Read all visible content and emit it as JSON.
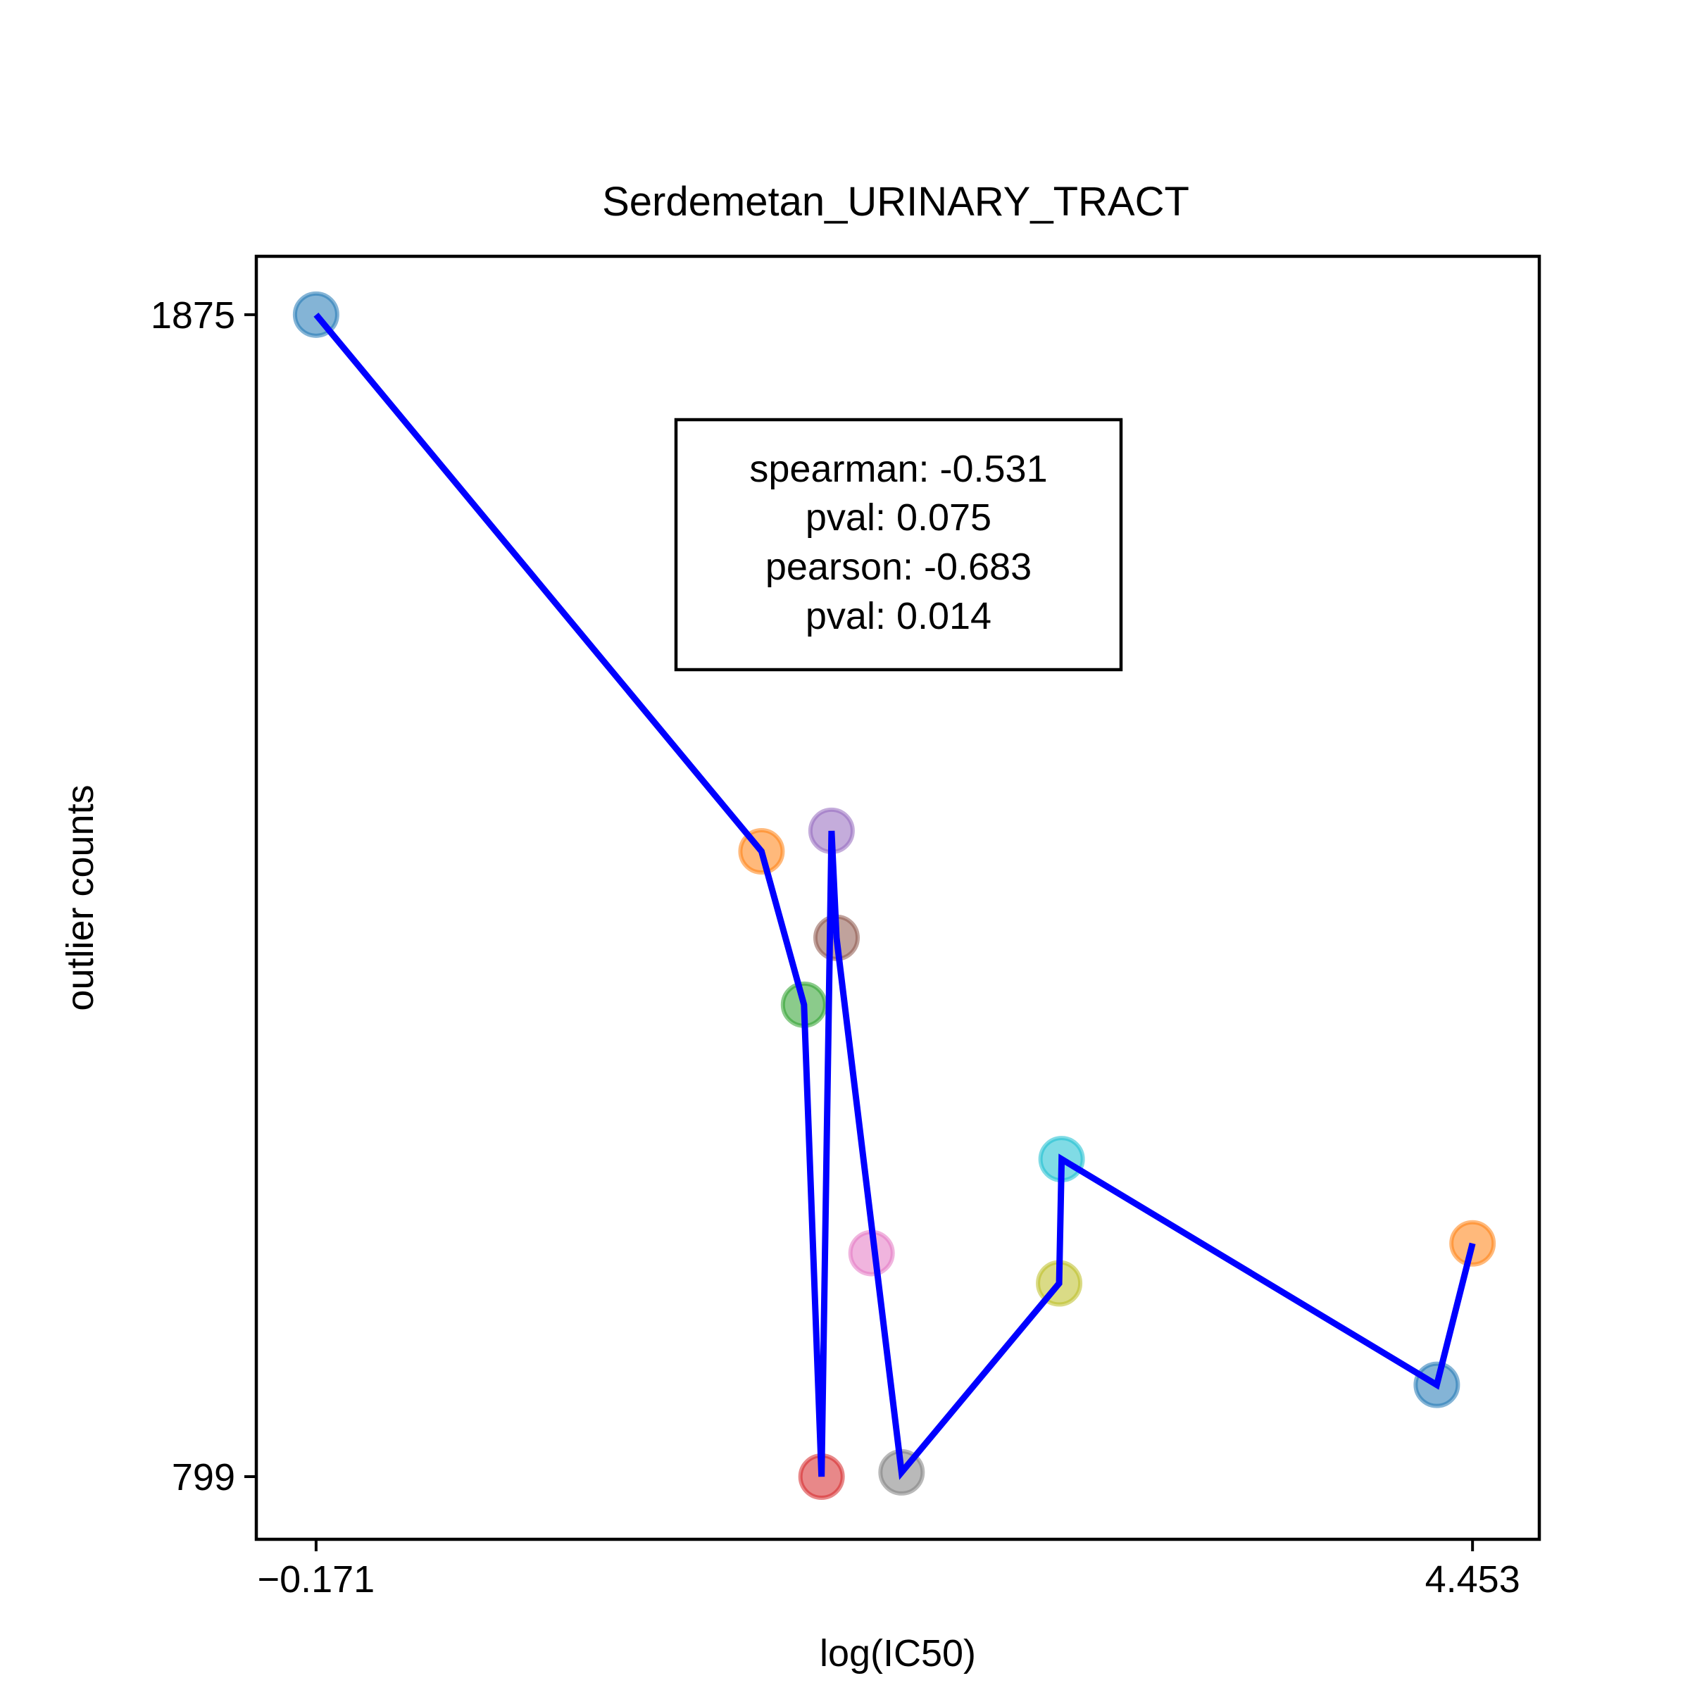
{
  "chart_data": {
    "type": "scatter",
    "title": "Serdemetan_URINARY_TRACT",
    "xlabel": "log(IC50)",
    "ylabel": "outlier counts",
    "xticks": [
      {
        "value": -0.171,
        "label": "−0.171"
      },
      {
        "value": 4.453,
        "label": "4.453"
      }
    ],
    "yticks": [
      {
        "value": 799,
        "label": "799"
      },
      {
        "value": 1875,
        "label": "1875"
      }
    ],
    "xlim": [
      -0.41,
      4.72
    ],
    "ylim": [
      741,
      1929
    ],
    "grid": false,
    "legend": "none",
    "points": [
      {
        "x": -0.171,
        "y": 1875,
        "color": "#1f77b4"
      },
      {
        "x": 1.61,
        "y": 1378,
        "color": "#ff7f0e"
      },
      {
        "x": 1.78,
        "y": 1236,
        "color": "#2ca02c"
      },
      {
        "x": 1.85,
        "y": 799,
        "color": "#d62728"
      },
      {
        "x": 1.89,
        "y": 1397,
        "color": "#9467bd"
      },
      {
        "x": 1.91,
        "y": 1298,
        "color": "#8c564b"
      },
      {
        "x": 2.05,
        "y": 1006,
        "color": "#e377c2"
      },
      {
        "x": 2.17,
        "y": 803,
        "color": "#7f7f7f"
      },
      {
        "x": 2.8,
        "y": 978,
        "color": "#bcbd22"
      },
      {
        "x": 2.81,
        "y": 1093,
        "color": "#17becf"
      },
      {
        "x": 4.31,
        "y": 884,
        "color": "#1f77b4"
      },
      {
        "x": 4.453,
        "y": 1015,
        "color": "#ff7f0e"
      }
    ],
    "line": {
      "color": "#0000ff",
      "x": [
        -0.171,
        1.61,
        1.78,
        1.85,
        1.89,
        1.91,
        2.17,
        2.8,
        2.81,
        4.31,
        4.453
      ],
      "y": [
        1875,
        1378,
        1236,
        799,
        1397,
        1298,
        803,
        978,
        1093,
        884,
        1015
      ]
    },
    "annotation": {
      "lines": [
        "spearman: -0.531",
        "pval: 0.075",
        "pearson: -0.683",
        "pval: 0.014"
      ]
    }
  }
}
